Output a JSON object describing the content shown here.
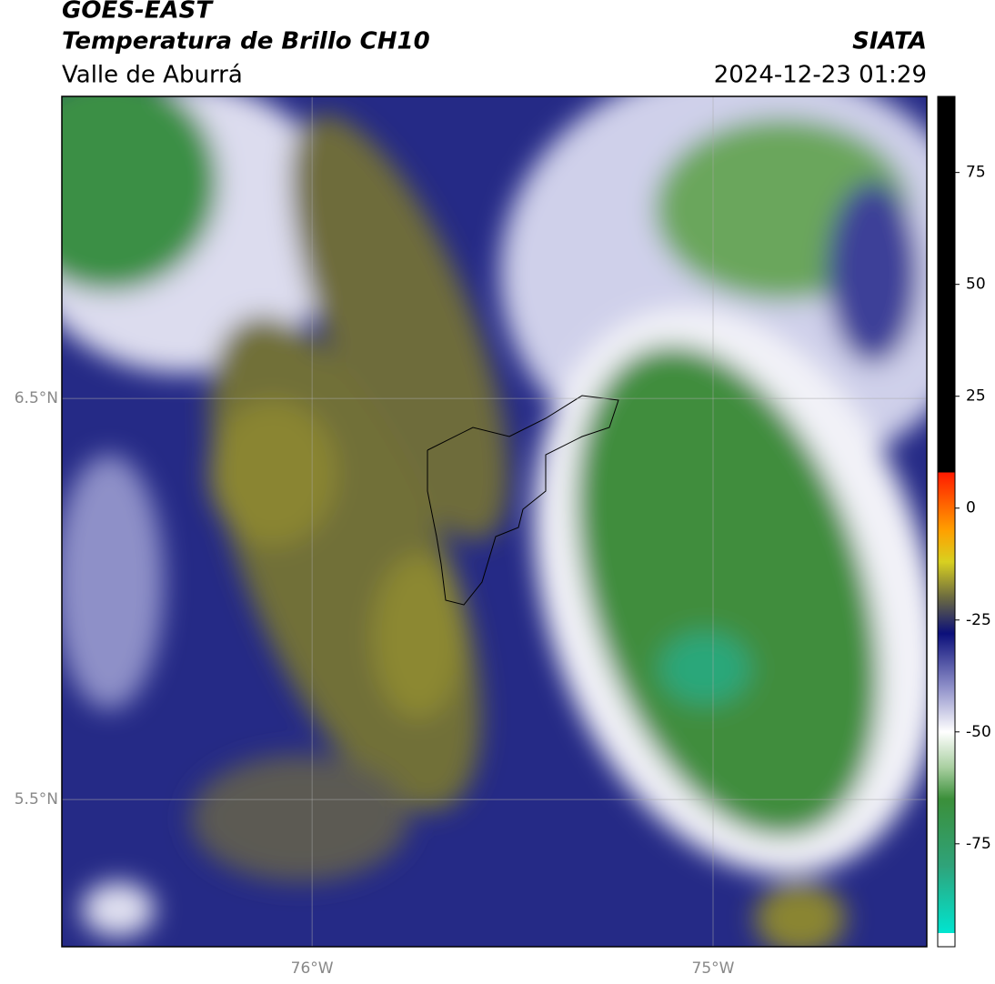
{
  "header": {
    "title": "GOES-EAST",
    "subtitle": "Temperatura de Brillo CH10",
    "region": "Valle de Aburrá",
    "source": "SIATA",
    "datetime": "2024-12-23 01:29"
  },
  "map": {
    "latlim": [
      5.133,
      7.253
    ],
    "lonlim": [
      -76.624,
      -74.467
    ],
    "lat_lines": [
      {
        "value": 6.5,
        "label": "6.5°N"
      },
      {
        "value": 5.5,
        "label": "5.5°N"
      }
    ],
    "lon_lines": [
      {
        "value": -76,
        "label": "76°W"
      },
      {
        "value": -75,
        "label": "75°W"
      }
    ]
  },
  "colorbar": {
    "lim": [
      -98,
      92
    ],
    "ticks": [
      75,
      50,
      25,
      0,
      -25,
      -50,
      -75
    ],
    "stops": [
      {
        "value": -98,
        "color": "#ffffff"
      },
      {
        "value": -95,
        "color": "#ffffff"
      },
      {
        "value": -95,
        "color": "#00e5d0"
      },
      {
        "value": -80,
        "color": "#2fa37a"
      },
      {
        "value": -65,
        "color": "#3b8f3a"
      },
      {
        "value": -58,
        "color": "#a8cfa0"
      },
      {
        "value": -50,
        "color": "#ffffff"
      },
      {
        "value": -40,
        "color": "#8f90c9"
      },
      {
        "value": -28,
        "color": "#0b0f7a"
      },
      {
        "value": -20,
        "color": "#6b6a40"
      },
      {
        "value": -12,
        "color": "#d8d020"
      },
      {
        "value": -5,
        "color": "#ffa000"
      },
      {
        "value": 8,
        "color": "#ff1a00"
      },
      {
        "value": 8,
        "color": "#000000"
      },
      {
        "value": 92,
        "color": "#000000"
      }
    ]
  }
}
